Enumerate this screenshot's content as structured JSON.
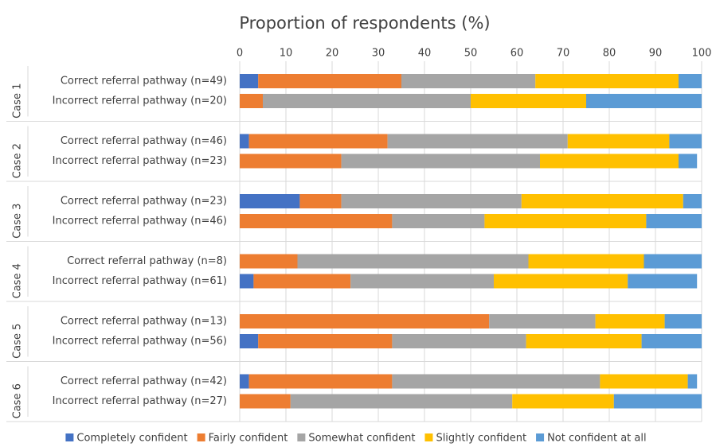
{
  "chart_data": {
    "type": "stacked_barh",
    "title": "Proportion of respondents (%)",
    "groups": [
      "Case 1",
      "Case 2",
      "Case 3",
      "Case 4",
      "Case 5",
      "Case 6"
    ],
    "categories": [
      "Correct referral pathway (n=49)",
      "Incorrect referral pathway (n=20)",
      "Correct referral pathway (n=46)",
      "Incorrect referral pathway (n=23)",
      "Correct referral pathway (n=23)",
      "Incorrect referral pathway (n=46)",
      "Correct referral pathway (n=8)",
      "Incorrect referral pathway (n=61)",
      "Correct referral pathway (n=13)",
      "Incorrect referral pathway (n=56)",
      "Correct referral pathway (n=42)",
      "Incorrect referral pathway (n=27)"
    ],
    "series": [
      {
        "name": "Completely confident",
        "color": "#4472c4",
        "values": [
          4,
          0,
          2,
          0,
          13,
          0,
          0,
          3,
          0,
          4,
          2,
          0
        ]
      },
      {
        "name": "Fairly confident",
        "color": "#ed7d31",
        "values": [
          31,
          5,
          30,
          22,
          9,
          33,
          12.5,
          21,
          54,
          29,
          31,
          11
        ]
      },
      {
        "name": "Somewhat confident",
        "color": "#a5a5a5",
        "values": [
          29,
          45,
          39,
          43,
          39,
          20,
          50,
          31,
          23,
          29,
          45,
          48
        ]
      },
      {
        "name": "Slightly confident",
        "color": "#ffc000",
        "values": [
          31,
          25,
          22,
          30,
          35,
          35,
          25,
          29,
          15,
          25,
          19,
          22
        ]
      },
      {
        "name": "Not confident at all",
        "color": "#5b9bd5",
        "values": [
          5,
          25,
          7,
          4,
          4,
          12,
          12.5,
          15,
          8,
          13,
          2,
          19
        ]
      }
    ],
    "xlim": [
      0,
      100
    ],
    "xticks": [
      0,
      10,
      20,
      30,
      40,
      50,
      60,
      70,
      80,
      90,
      100
    ],
    "grid": true
  }
}
